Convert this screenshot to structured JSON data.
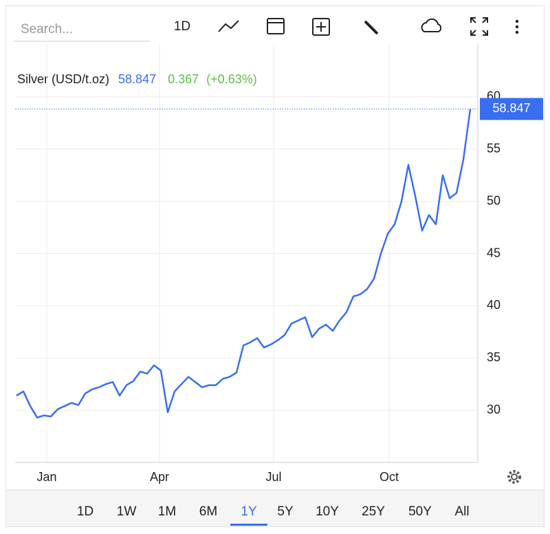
{
  "toolbar": {
    "search": "Search...",
    "interval": "1D"
  },
  "chart_data": {
    "type": "line",
    "title": "Silver (USD/t.oz)",
    "change": 0.367,
    "change_label": "(+0.63%)",
    "color": "#3a6ef0",
    "values": [
      31.4,
      31.8,
      30.4,
      29.3,
      29.5,
      29.4,
      30.1,
      30.4,
      30.7,
      30.5,
      31.6,
      32.0,
      32.2,
      32.5,
      32.7,
      31.4,
      32.4,
      32.8,
      33.7,
      33.5,
      34.3,
      33.8,
      29.8,
      31.8,
      32.5,
      33.2,
      32.7,
      32.2,
      32.4,
      32.4,
      33.0,
      33.2,
      33.6,
      36.2,
      36.5,
      36.9,
      36.0,
      36.3,
      36.7,
      37.2,
      38.3,
      38.6,
      38.9,
      37.0,
      37.8,
      38.2,
      37.6,
      38.6,
      39.4,
      40.9,
      41.1,
      41.6,
      42.6,
      45.0,
      46.9,
      47.8,
      50.0,
      53.5,
      50.5,
      47.2,
      48.7,
      47.8,
      52.5,
      50.3,
      50.8,
      54.0,
      58.847
    ],
    "xlim": [
      -0.2,
      67.1
    ],
    "xticks": [
      {
        "value": 4.4,
        "label": "Jan"
      },
      {
        "value": 20.8,
        "label": "Apr"
      },
      {
        "value": 37.4,
        "label": "Jul"
      },
      {
        "value": 54.2,
        "label": "Oct"
      }
    ],
    "ylim": [
      25,
      65
    ],
    "yticks": [
      30,
      35,
      40,
      45,
      50,
      55,
      60
    ],
    "grid": true
  },
  "ranges": [
    "1D",
    "1W",
    "1M",
    "6M",
    "1Y",
    "5Y",
    "10Y",
    "25Y",
    "50Y",
    "All"
  ],
  "active_range": 4
}
